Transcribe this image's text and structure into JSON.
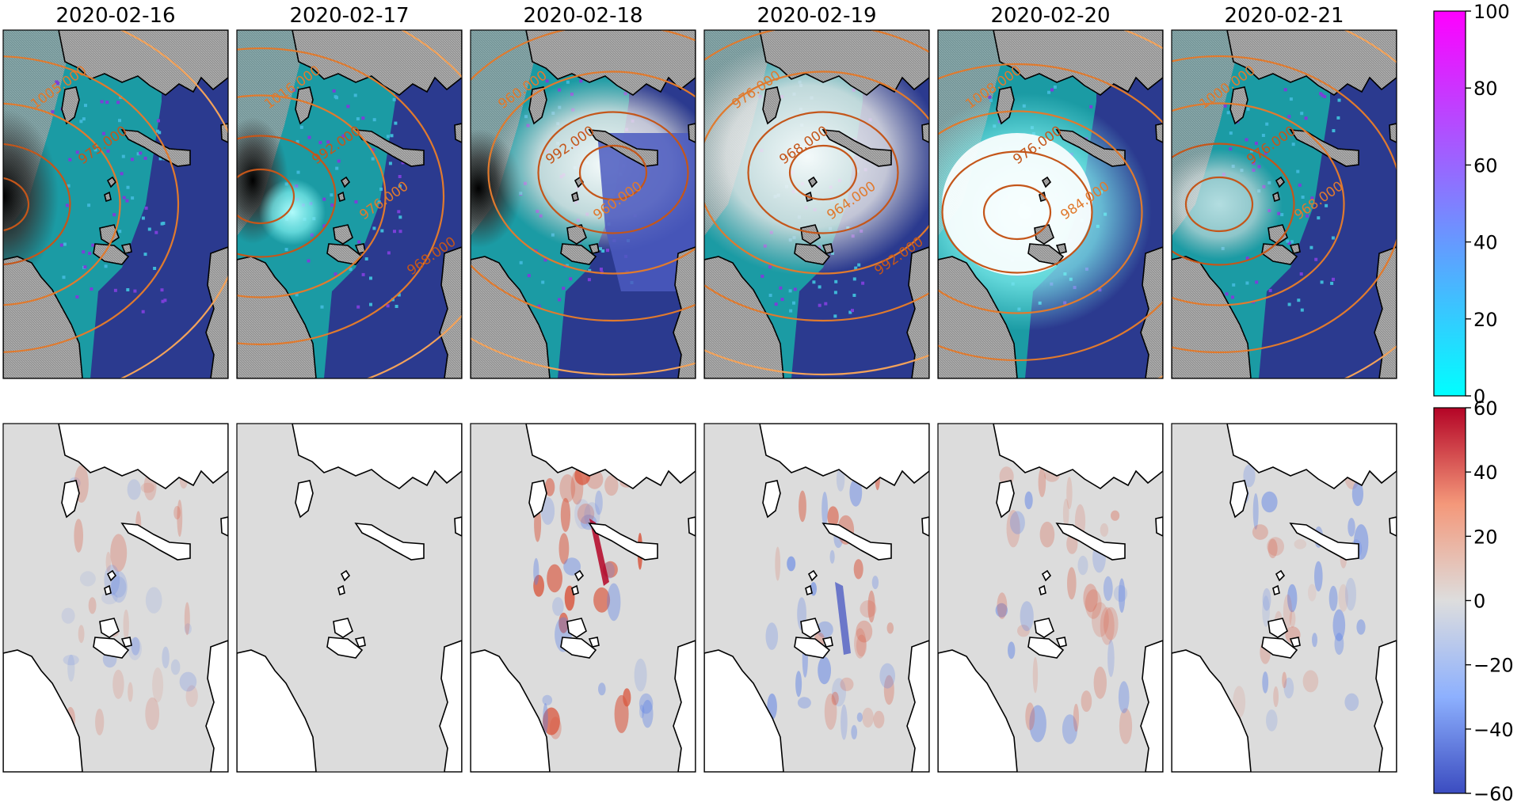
{
  "figure": {
    "dates": [
      "2020-02-16",
      "2020-02-17",
      "2020-02-18",
      "2020-02-19",
      "2020-02-20",
      "2020-02-21"
    ],
    "top_row": {
      "pressure_labels": [
        [
          "1005.000",
          "975.000"
        ],
        [
          "1016.000",
          "992.000",
          "976.000",
          "968.000"
        ],
        [
          "960.000",
          "992.000",
          "960.000"
        ],
        [
          "976.000",
          "968.000",
          "964.000",
          "992.000"
        ],
        [
          "1008.000",
          "976.000",
          "984.000"
        ],
        [
          "1000.000",
          "976.000",
          "968.000"
        ]
      ]
    },
    "colorbar_top": {
      "colormap": "cool",
      "range": [
        0,
        100
      ],
      "ticks": [
        "0",
        "20",
        "40",
        "60",
        "80",
        "100"
      ]
    },
    "colorbar_bottom": {
      "colormap": "coolwarm",
      "range": [
        -60,
        60
      ],
      "ticks": [
        "−60",
        "−40",
        "−20",
        "0",
        "20",
        "40",
        "60"
      ]
    },
    "colors": {
      "ocean": "#2b3a8f",
      "ice_teal": "#1aa6a6",
      "land_gray": "#9a9a9a",
      "diff_background": "#dcdcdc",
      "contour_low": "#c4561a",
      "contour_high": "#f2a25a"
    }
  }
}
